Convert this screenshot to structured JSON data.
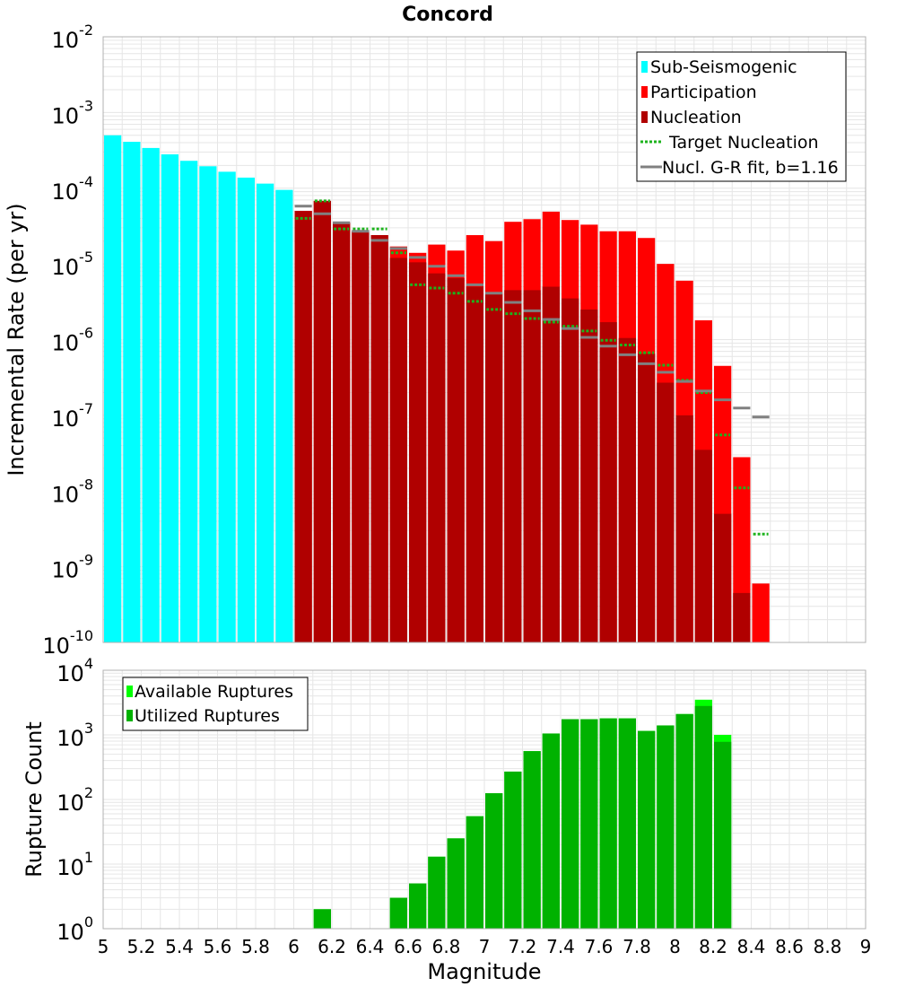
{
  "title": "Concord",
  "colors": {
    "sub_seismogenic": "#00ffff",
    "participation": "#ff0000",
    "nucleation": "#b00000",
    "target_nucleation": "#1db31d",
    "gr_fit": "#808080",
    "available": "#00ff00",
    "utilized": "#00b200",
    "grid": "#e6e6e6",
    "border": "#b0b0b0"
  },
  "chart_data": [
    {
      "type": "bar",
      "name": "top-panel",
      "scale": "log",
      "xlim": [
        5,
        9
      ],
      "ylim_exponents": [
        -10,
        -2
      ],
      "ylabel": "Incremental Rate (per yr)",
      "bin_width": 0.1,
      "legend": {
        "placement": "top-right",
        "entries": [
          "Sub-Seismogenic",
          "Participation",
          "Nucleation",
          "Target Nucleation",
          "Nucl. G-R fit, b=1.16"
        ]
      },
      "sub_seismogenic": {
        "x": [
          5.05,
          5.15,
          5.25,
          5.35,
          5.45,
          5.55,
          5.65,
          5.75,
          5.85,
          5.95
        ],
        "values": [
          0.0005,
          0.00041,
          0.00034,
          0.00028,
          0.00023,
          0.000195,
          0.000165,
          0.000138,
          0.000115,
          9.5e-05
        ]
      },
      "participation": {
        "x": [
          6.05,
          6.15,
          6.25,
          6.35,
          6.45,
          6.55,
          6.65,
          6.75,
          6.85,
          6.95,
          7.05,
          7.15,
          7.25,
          7.35,
          7.45,
          7.55,
          7.65,
          7.75,
          7.85,
          7.95,
          8.05,
          8.15,
          8.25,
          8.35,
          8.45
        ],
        "values": [
          5e-05,
          6.8e-05,
          3.5e-05,
          2.7e-05,
          2.4e-05,
          1.7e-05,
          1.4e-05,
          1.8e-05,
          1.5e-05,
          2.4e-05,
          2e-05,
          3.6e-05,
          3.9e-05,
          4.9e-05,
          3.8e-05,
          3.3e-05,
          2.7e-05,
          2.7e-05,
          2.2e-05,
          1e-05,
          6e-06,
          1.8e-06,
          4.5e-07,
          2.8e-08,
          6e-10
        ]
      },
      "nucleation": {
        "x": [
          6.05,
          6.15,
          6.25,
          6.35,
          6.45,
          6.55,
          6.65,
          6.75,
          6.85,
          6.95,
          7.05,
          7.15,
          7.25,
          7.35,
          7.45,
          7.55,
          7.65,
          7.75,
          7.85,
          7.95,
          8.05,
          8.15,
          8.25,
          8.35
        ],
        "values": [
          5e-05,
          6.8e-05,
          3.5e-05,
          2.7e-05,
          2.4e-05,
          1.2e-05,
          1.05e-05,
          7.5e-06,
          6.5e-06,
          5e-06,
          4e-06,
          4.5e-06,
          4.5e-06,
          5e-06,
          3.5e-06,
          2.5e-06,
          1.7e-06,
          1.05e-06,
          6.5e-07,
          2.7e-07,
          1e-07,
          3.5e-08,
          5e-09,
          4.5e-10
        ]
      },
      "target_nucleation": {
        "x": [
          6.05,
          6.15,
          6.25,
          6.35,
          6.45,
          6.55,
          6.65,
          6.75,
          6.85,
          6.95,
          7.05,
          7.15,
          7.25,
          7.35,
          7.45,
          7.55,
          7.65,
          7.75,
          7.85,
          7.95,
          8.05,
          8.15,
          8.25,
          8.35,
          8.45
        ],
        "values": [
          4e-05,
          6.8e-05,
          2.9e-05,
          2.9e-05,
          2.9e-05,
          1.4e-05,
          5.3e-06,
          4.8e-06,
          4.1e-06,
          3.2e-06,
          2.5e-06,
          2.2e-06,
          1.9e-06,
          1.7e-06,
          1.5e-06,
          1.3e-06,
          9.8e-07,
          8.5e-07,
          6.7e-07,
          4.6e-07,
          2.9e-07,
          2e-07,
          5.5e-08,
          1.1e-08,
          2.7e-09
        ]
      },
      "gr_fit": {
        "x": [
          6.05,
          6.15,
          6.25,
          6.35,
          6.45,
          6.55,
          6.65,
          6.75,
          6.85,
          6.95,
          7.05,
          7.15,
          7.25,
          7.35,
          7.45,
          7.55,
          7.65,
          7.75,
          7.85,
          7.95,
          8.05,
          8.15,
          8.25,
          8.35,
          8.45
        ],
        "values": [
          5.8e-05,
          4.6e-05,
          3.5e-05,
          2.7e-05,
          2.05e-05,
          1.6e-05,
          1.22e-05,
          9.3e-06,
          7e-06,
          5.3e-06,
          4.1e-06,
          3.1e-06,
          2.4e-06,
          1.85e-06,
          1.4e-06,
          1.07e-06,
          8.2e-07,
          6.3e-07,
          4.8e-07,
          3.7e-07,
          2.8e-07,
          2.1e-07,
          1.6e-07,
          1.25e-07,
          9.5e-08
        ]
      }
    },
    {
      "type": "bar",
      "name": "bottom-panel",
      "scale": "log",
      "xlim": [
        5,
        9
      ],
      "ylim_exponents": [
        0,
        4
      ],
      "xlabel": "Magnitude",
      "ylabel": "Rupture Count",
      "bin_width": 0.1,
      "legend": {
        "placement": "top-left",
        "entries": [
          "Available Ruptures",
          "Utilized Ruptures"
        ]
      },
      "available": {
        "x": [
          6.15,
          6.35,
          6.45,
          6.55,
          6.65,
          6.75,
          6.85,
          6.95,
          7.05,
          7.15,
          7.25,
          7.35,
          7.45,
          7.55,
          7.65,
          7.75,
          7.85,
          7.95,
          8.05,
          8.15,
          8.25
        ],
        "values": [
          2,
          1,
          1,
          3,
          5,
          13,
          25,
          55,
          125,
          270,
          560,
          1050,
          1750,
          1750,
          1800,
          1800,
          1150,
          1400,
          2100,
          3500,
          1000
        ]
      },
      "utilized": {
        "x": [
          6.15,
          6.35,
          6.45,
          6.55,
          6.65,
          6.75,
          6.85,
          6.95,
          7.05,
          7.15,
          7.25,
          7.35,
          7.45,
          7.55,
          7.65,
          7.75,
          7.85,
          7.95,
          8.05,
          8.15,
          8.25
        ],
        "values": [
          2,
          1,
          1,
          3,
          5,
          13,
          25,
          55,
          125,
          270,
          560,
          1050,
          1750,
          1750,
          1800,
          1800,
          1150,
          1400,
          2100,
          2800,
          780
        ]
      },
      "xticks": [
        "5",
        "5.2",
        "5.4",
        "5.6",
        "5.8",
        "6",
        "6.2",
        "6.4",
        "6.6",
        "6.8",
        "7",
        "7.2",
        "7.4",
        "7.6",
        "7.8",
        "8",
        "8.2",
        "8.4",
        "8.6",
        "8.8",
        "9"
      ]
    }
  ]
}
